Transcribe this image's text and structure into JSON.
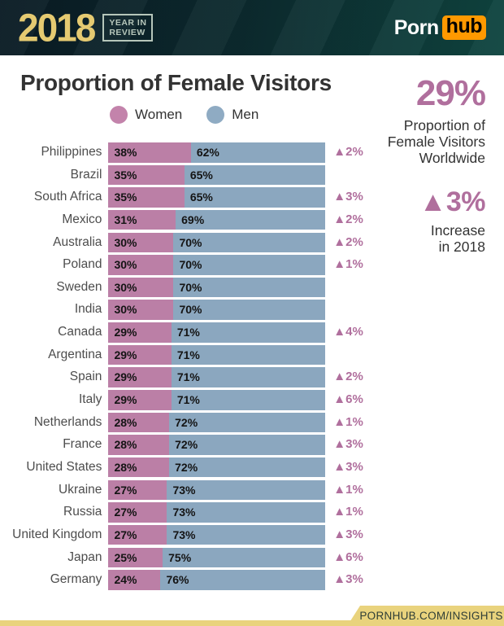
{
  "header": {
    "year": "2018",
    "badge_line1": "YEAR IN",
    "badge_line2": "REVIEW",
    "brand_left": "Porn",
    "brand_right": "hub"
  },
  "main": {
    "title": "Proportion of Female Visitors",
    "legend": [
      {
        "label": "Women",
        "color": "#c383ab"
      },
      {
        "label": "Men",
        "color": "#8fabc3"
      }
    ]
  },
  "stats": {
    "stat1_value": "29%",
    "stat1_label_lines": [
      "Proportion of",
      "Female Visitors",
      "Worldwide"
    ],
    "stat2_value": "▲3%",
    "stat2_label_lines": [
      "Increase",
      "in 2018"
    ]
  },
  "chart_data": {
    "type": "bar",
    "stacked": true,
    "orientation": "horizontal",
    "title": "Proportion of Female Visitors",
    "xlim": [
      0,
      100
    ],
    "legend_position": "top",
    "categories": [
      "Philippines",
      "Brazil",
      "South Africa",
      "Mexico",
      "Australia",
      "Poland",
      "Sweden",
      "India",
      "Canada",
      "Argentina",
      "Spain",
      "Italy",
      "Netherlands",
      "France",
      "United States",
      "Ukraine",
      "Russia",
      "United Kingdom",
      "Japan",
      "Germany"
    ],
    "series": [
      {
        "name": "Women",
        "color": "#bb7fa6",
        "values": [
          38,
          35,
          35,
          31,
          30,
          30,
          30,
          30,
          29,
          29,
          29,
          29,
          28,
          28,
          28,
          27,
          27,
          27,
          25,
          24
        ]
      },
      {
        "name": "Men",
        "color": "#8ba7bf",
        "values": [
          62,
          65,
          65,
          69,
          70,
          70,
          70,
          70,
          71,
          71,
          71,
          71,
          72,
          72,
          72,
          73,
          73,
          73,
          75,
          76
        ]
      }
    ],
    "change_prefix": "▲",
    "change_yoy_pct": [
      2,
      null,
      3,
      2,
      2,
      1,
      null,
      null,
      4,
      null,
      2,
      6,
      1,
      3,
      3,
      1,
      1,
      3,
      6,
      3
    ]
  },
  "footer": {
    "link": "PORNHUB.COM/INSIGHTS"
  }
}
